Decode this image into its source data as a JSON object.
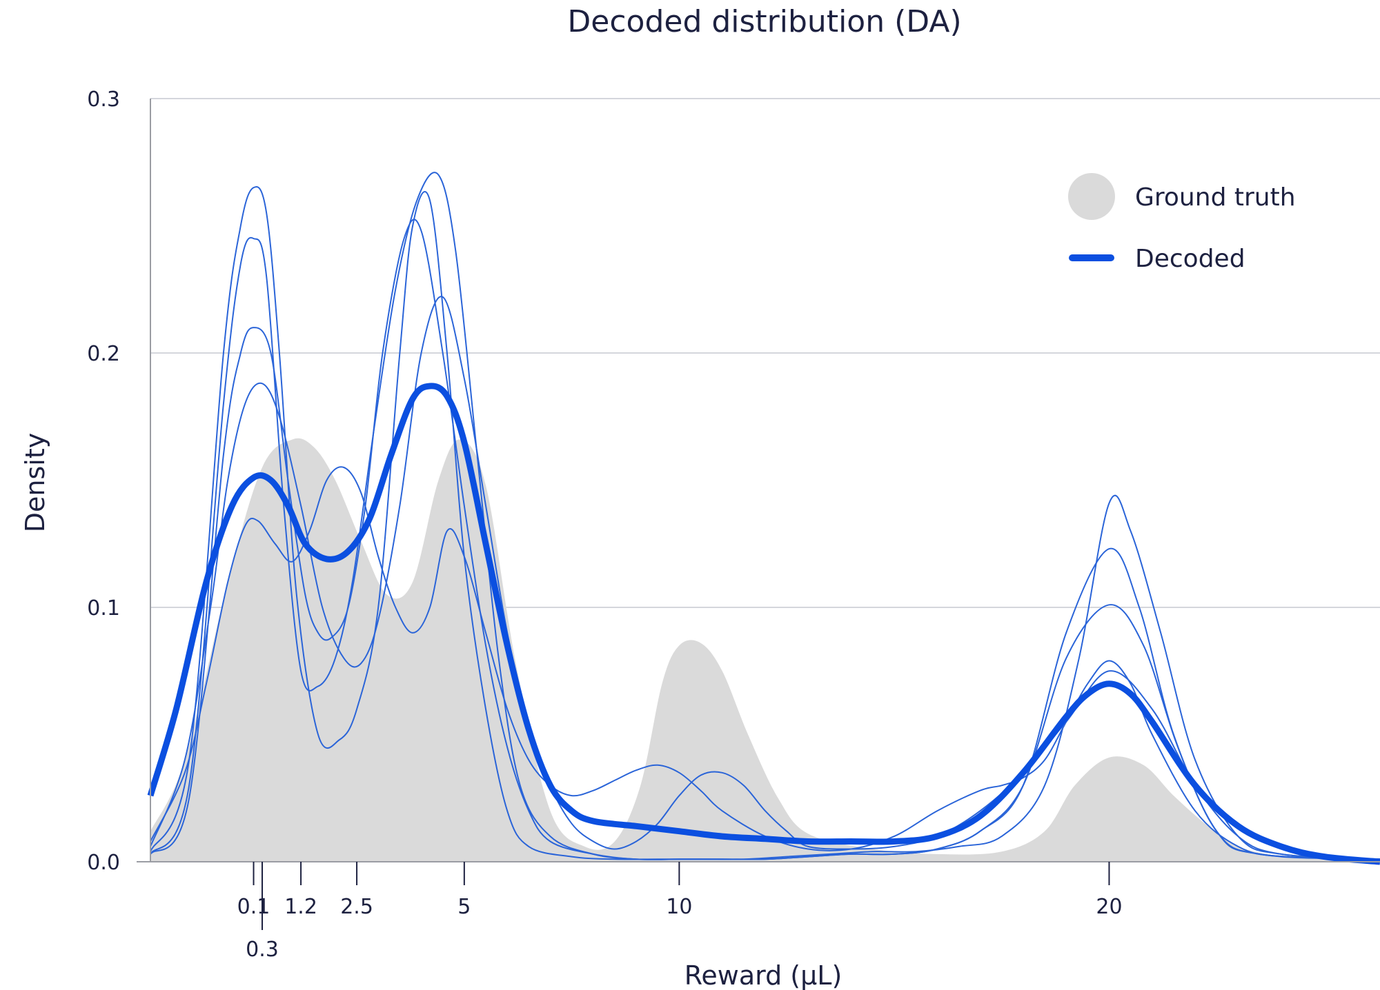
{
  "chart_data": {
    "type": "area",
    "title": "Decoded distribution (DA)",
    "xlabel": "Reward (µL)",
    "ylabel": "Density",
    "ylim": [
      0,
      0.3
    ],
    "yticks": [
      {
        "value": 0.0,
        "label": "0.0"
      },
      {
        "value": 0.1,
        "label": "0.1"
      },
      {
        "value": 0.2,
        "label": "0.2"
      },
      {
        "value": 0.3,
        "label": "0.3"
      }
    ],
    "xlim": [
      -2.3,
      26.3
    ],
    "xticks": [
      {
        "value": 0.1,
        "label": "0.1",
        "row": 1
      },
      {
        "value": 0.3,
        "label": "0.3",
        "row": 2
      },
      {
        "value": 1.2,
        "label": "1.2",
        "row": 1
      },
      {
        "value": 2.5,
        "label": "2.5",
        "row": 1
      },
      {
        "value": 5,
        "label": "5",
        "row": 1
      },
      {
        "value": 10,
        "label": "10",
        "row": 1
      },
      {
        "value": 20,
        "label": "20",
        "row": 1
      }
    ],
    "grid": true,
    "legend": {
      "position": "top-right",
      "entries": [
        {
          "label": "Ground truth",
          "color": "#dadada",
          "style": "circle"
        },
        {
          "label": "Decoded",
          "color": "#0b4fe0",
          "style": "line"
        }
      ]
    },
    "colors": {
      "ground_truth": "#dadada",
      "decoded": "#0b4fe0",
      "samples": "#2a64d8"
    },
    "ground_truth": {
      "x": [
        -2.3,
        -1.5,
        -0.5,
        0.3,
        1.0,
        1.5,
        2.0,
        2.6,
        3.2,
        3.8,
        4.4,
        4.9,
        5.5,
        6.2,
        7.0,
        7.8,
        8.5,
        9.1,
        9.6,
        10.0,
        10.5,
        11.0,
        11.6,
        12.3,
        13.0,
        14.5,
        16.0,
        17.5,
        18.5,
        19.2,
        20.0,
        20.8,
        21.5,
        22.3,
        23.0,
        24.0,
        25.0,
        26.3
      ],
      "y": [
        0.012,
        0.04,
        0.11,
        0.155,
        0.166,
        0.163,
        0.15,
        0.126,
        0.105,
        0.11,
        0.15,
        0.166,
        0.148,
        0.078,
        0.02,
        0.006,
        0.008,
        0.03,
        0.07,
        0.085,
        0.086,
        0.075,
        0.05,
        0.025,
        0.011,
        0.005,
        0.003,
        0.004,
        0.012,
        0.03,
        0.041,
        0.038,
        0.026,
        0.014,
        0.006,
        0.002,
        0.001,
        0.0
      ]
    },
    "decoded": {
      "x": [
        -2.3,
        -1.7,
        -1.0,
        -0.4,
        0.1,
        0.5,
        0.9,
        1.3,
        1.8,
        2.3,
        2.8,
        3.3,
        3.8,
        4.2,
        4.6,
        5.0,
        5.5,
        6.0,
        6.5,
        7.0,
        7.5,
        8.0,
        9.0,
        10.0,
        11.0,
        12.0,
        13.0,
        14.0,
        15.0,
        16.0,
        17.0,
        18.0,
        19.0,
        19.5,
        20.0,
        20.5,
        21.0,
        22.0,
        23.0,
        24.0,
        25.0,
        26.3
      ],
      "y": [
        0.026,
        0.06,
        0.11,
        0.14,
        0.151,
        0.15,
        0.14,
        0.125,
        0.119,
        0.122,
        0.135,
        0.16,
        0.182,
        0.187,
        0.183,
        0.165,
        0.125,
        0.085,
        0.052,
        0.03,
        0.02,
        0.016,
        0.014,
        0.012,
        0.01,
        0.009,
        0.008,
        0.008,
        0.008,
        0.01,
        0.018,
        0.035,
        0.057,
        0.066,
        0.07,
        0.066,
        0.055,
        0.03,
        0.014,
        0.006,
        0.002,
        0.0
      ]
    },
    "samples": [
      {
        "x": [
          -2.3,
          -1.4,
          -0.6,
          -0.2,
          0.1,
          0.4,
          0.7,
          1.1,
          1.6,
          2.1,
          2.5,
          3.0,
          3.5,
          3.8,
          4.2,
          4.6,
          5.0,
          5.5,
          6.0,
          6.5,
          7.5,
          8.5,
          9.5,
          10.5,
          11.5,
          12.5,
          13.5,
          14.5,
          15.5,
          16.5,
          17.5,
          18.5,
          19.3,
          20.0,
          20.5,
          21.2,
          22.0,
          23.0,
          24.0,
          26.3
        ],
        "y": [
          0.004,
          0.04,
          0.2,
          0.25,
          0.265,
          0.255,
          0.2,
          0.105,
          0.05,
          0.048,
          0.06,
          0.1,
          0.2,
          0.25,
          0.26,
          0.2,
          0.12,
          0.06,
          0.02,
          0.006,
          0.002,
          0.001,
          0.001,
          0.001,
          0.001,
          0.002,
          0.003,
          0.004,
          0.004,
          0.006,
          0.01,
          0.03,
          0.08,
          0.141,
          0.13,
          0.09,
          0.04,
          0.01,
          0.003,
          0.001
        ]
      },
      {
        "x": [
          -2.3,
          -1.4,
          -0.6,
          -0.2,
          0.1,
          0.4,
          0.8,
          1.2,
          1.6,
          2.0,
          2.4,
          2.9,
          3.4,
          3.9,
          4.4,
          4.8,
          5.3,
          5.8,
          6.3,
          7.0,
          8.0,
          9.0,
          10.0,
          11.0,
          12.0,
          13.0,
          14.0,
          15.0,
          16.0,
          17.0,
          18.0,
          19.0,
          20.0,
          20.7,
          21.5,
          22.5,
          23.5,
          26.3
        ],
        "y": [
          0.003,
          0.03,
          0.18,
          0.235,
          0.245,
          0.23,
          0.14,
          0.075,
          0.069,
          0.08,
          0.11,
          0.17,
          0.225,
          0.26,
          0.27,
          0.24,
          0.16,
          0.08,
          0.03,
          0.01,
          0.003,
          0.001,
          0.001,
          0.001,
          0.001,
          0.002,
          0.003,
          0.003,
          0.005,
          0.012,
          0.03,
          0.09,
          0.123,
          0.1,
          0.05,
          0.012,
          0.003,
          0.001
        ]
      },
      {
        "x": [
          -2.3,
          -1.4,
          -0.6,
          -0.2,
          0.1,
          0.5,
          0.9,
          1.3,
          1.6,
          1.9,
          2.3,
          2.7,
          3.1,
          3.6,
          4.0,
          4.5,
          5.0,
          5.5,
          6.0,
          6.5,
          7.0,
          8.0,
          9.0,
          10.0,
          11.0,
          12.0,
          13.0,
          14.0,
          15.0,
          16.0,
          17.0,
          18.0,
          19.0,
          20.0,
          20.8,
          21.6,
          22.5,
          23.5,
          26.3
        ],
        "y": [
          0.003,
          0.025,
          0.16,
          0.2,
          0.21,
          0.2,
          0.15,
          0.105,
          0.09,
          0.088,
          0.1,
          0.14,
          0.2,
          0.245,
          0.248,
          0.2,
          0.14,
          0.085,
          0.045,
          0.02,
          0.008,
          0.003,
          0.001,
          0.001,
          0.001,
          0.001,
          0.002,
          0.003,
          0.003,
          0.005,
          0.012,
          0.03,
          0.08,
          0.101,
          0.085,
          0.045,
          0.012,
          0.003,
          0.001
        ]
      },
      {
        "x": [
          -2.3,
          -1.5,
          -0.9,
          -0.5,
          -0.1,
          0.3,
          0.7,
          1.2,
          1.7,
          2.2,
          2.6,
          3.0,
          3.5,
          4.0,
          4.5,
          5.0,
          5.5,
          6.0,
          6.5,
          7.0,
          7.5,
          8.0,
          8.5,
          9.0,
          9.5,
          10.0,
          10.5,
          11.0,
          11.5,
          12.0,
          12.5,
          13.0,
          14.0,
          15.0,
          16.0,
          17.0,
          18.0,
          19.0,
          20.0,
          21.0,
          22.0,
          23.0,
          24.0,
          26.3
        ],
        "y": [
          0.006,
          0.04,
          0.1,
          0.15,
          0.18,
          0.188,
          0.175,
          0.14,
          0.1,
          0.08,
          0.078,
          0.095,
          0.14,
          0.2,
          0.222,
          0.19,
          0.14,
          0.09,
          0.055,
          0.03,
          0.015,
          0.008,
          0.005,
          0.008,
          0.015,
          0.026,
          0.034,
          0.035,
          0.03,
          0.02,
          0.012,
          0.006,
          0.005,
          0.006,
          0.01,
          0.02,
          0.035,
          0.055,
          0.075,
          0.06,
          0.03,
          0.01,
          0.003,
          0.001
        ]
      },
      {
        "x": [
          -2.3,
          -1.5,
          -1.0,
          -0.5,
          -0.1,
          0.2,
          0.6,
          1.0,
          1.4,
          1.8,
          2.2,
          2.6,
          3.0,
          3.4,
          3.8,
          4.2,
          4.6,
          5.0,
          5.5,
          6.0,
          6.5,
          7.0,
          7.5,
          8.0,
          8.5,
          9.0,
          9.5,
          10.0,
          10.5,
          11.0,
          12.0,
          13.0,
          14.0,
          15.0,
          16.0,
          17.0,
          17.5,
          18.0,
          18.5,
          19.0,
          19.5,
          20.0,
          20.5,
          21.0,
          22.0,
          23.0,
          24.0,
          26.3
        ],
        "y": [
          0.008,
          0.035,
          0.07,
          0.11,
          0.132,
          0.134,
          0.125,
          0.118,
          0.13,
          0.15,
          0.155,
          0.145,
          0.12,
          0.1,
          0.09,
          0.1,
          0.13,
          0.12,
          0.09,
          0.06,
          0.04,
          0.03,
          0.026,
          0.028,
          0.032,
          0.036,
          0.038,
          0.035,
          0.028,
          0.02,
          0.01,
          0.005,
          0.005,
          0.01,
          0.02,
          0.028,
          0.03,
          0.033,
          0.04,
          0.055,
          0.07,
          0.079,
          0.07,
          0.05,
          0.02,
          0.006,
          0.002,
          0.001
        ]
      }
    ]
  }
}
